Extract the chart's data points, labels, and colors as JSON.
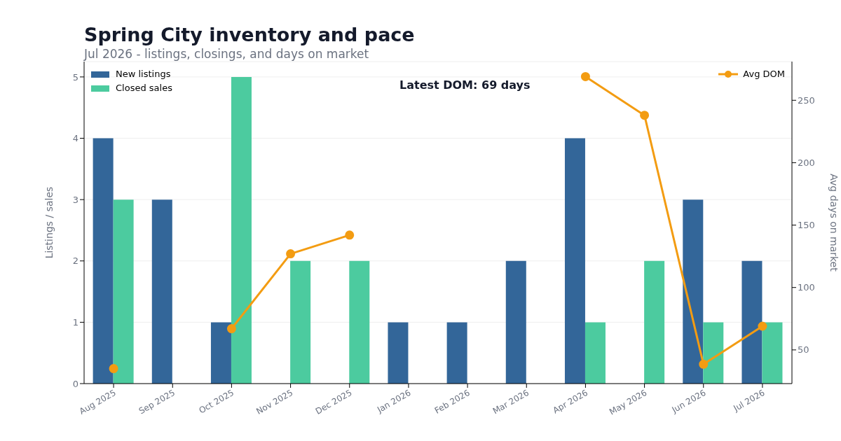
{
  "chart_data": {
    "type": "bar",
    "title": "Spring City inventory and pace",
    "subtitle": "Jul 2026 - listings, closings, and days on market",
    "categories": [
      "Aug 2025",
      "Sep 2025",
      "Oct 2025",
      "Nov 2025",
      "Dec 2025",
      "Jan 2026",
      "Feb 2026",
      "Mar 2026",
      "Apr 2026",
      "May 2026",
      "Jun 2026",
      "Jul 2026"
    ],
    "series": [
      {
        "name": "New listings",
        "color": "#336699",
        "values": [
          4,
          3,
          1,
          0,
          0,
          1,
          1,
          2,
          4,
          0,
          3,
          2
        ]
      },
      {
        "name": "Closed sales",
        "color": "#4ccb9f",
        "values": [
          3,
          0,
          5,
          2,
          2,
          0,
          0,
          0,
          1,
          2,
          1,
          1
        ]
      },
      {
        "name": "Avg DOM",
        "type": "line",
        "axis": "y2",
        "color": "#f39c12",
        "values": [
          35,
          null,
          67,
          127,
          142,
          null,
          null,
          null,
          269,
          238,
          38.5,
          69
        ]
      }
    ],
    "ylabel": "Listings / sales",
    "y2label": "Avg days on market",
    "ylim": [
      0,
      5.25
    ],
    "yticks": [
      0,
      1,
      2,
      3,
      4,
      5
    ],
    "y2lim": [
      23,
      281
    ],
    "y2ticks": [
      50,
      100,
      150,
      200,
      250
    ],
    "annotations": [
      "Latest DOM: 69 days"
    ],
    "grid": "y",
    "legend": "top",
    "marker": "circle"
  }
}
